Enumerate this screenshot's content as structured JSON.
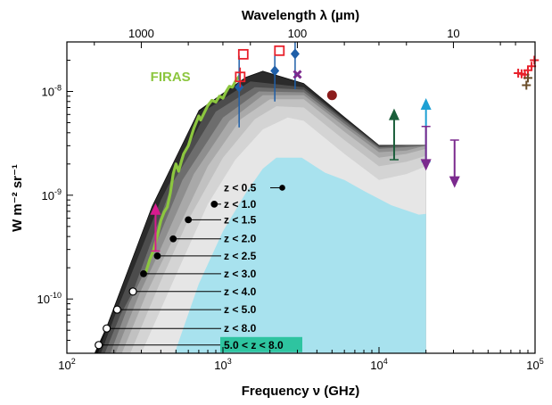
{
  "chart_data": {
    "type": "area",
    "title": "",
    "xlabel": "Frequency ν (GHz)",
    "x2label": "Wavelength λ (µm)",
    "ylabel": "W m⁻² sr⁻¹",
    "x_scale": "log",
    "y_scale": "log",
    "xlim": [
      100,
      100000
    ],
    "ylim": [
      3e-11,
      3e-08
    ],
    "x_ticks": [
      {
        "value": 100,
        "base": "10",
        "exp": "2"
      },
      {
        "value": 1000,
        "base": "10",
        "exp": "3"
      },
      {
        "value": 10000,
        "base": "10",
        "exp": "4"
      },
      {
        "value": 100000,
        "base": "10",
        "exp": "5"
      }
    ],
    "x2_ticks": [
      {
        "value_um": 1000,
        "label": "1000"
      },
      {
        "value_um": 100,
        "label": "100"
      },
      {
        "value_um": 10,
        "label": "10"
      }
    ],
    "y_ticks": [
      {
        "value": 1e-10,
        "base": "10",
        "exp": "-10"
      },
      {
        "value": 1e-09,
        "base": "10",
        "exp": "-9"
      },
      {
        "value": 1e-08,
        "base": "10",
        "exp": "-8"
      }
    ],
    "cumulative_series": [
      {
        "name": "z < 0.5",
        "color": "#a8e2ee",
        "label_anchor": [
          2400,
          1.18e-09
        ],
        "points": [
          [
            490,
            3e-11
          ],
          [
            700,
            1.4e-10
          ],
          [
            1000,
            4.5e-10
          ],
          [
            1400,
            1.05e-09
          ],
          [
            1800,
            1.8e-09
          ],
          [
            2200,
            2.3e-09
          ],
          [
            3200,
            2.3e-09
          ],
          [
            4500,
            1.65e-09
          ],
          [
            6000,
            1.4e-09
          ],
          [
            8000,
            1.1e-09
          ],
          [
            12000,
            8e-10
          ],
          [
            18000,
            6.5e-10
          ],
          [
            20000,
            6.6e-10
          ],
          [
            20000,
            3e-11
          ]
        ]
      },
      {
        "name": "z < 1.0",
        "color": "#e6e6e6",
        "label_anchor": [
          880,
          8.2e-10
        ],
        "points": [
          [
            300,
            3e-11
          ],
          [
            500,
            1.7e-10
          ],
          [
            800,
            8.2e-10
          ],
          [
            1200,
            2.2e-09
          ],
          [
            1800,
            4.3e-09
          ],
          [
            2600,
            5.6e-09
          ],
          [
            3300,
            5.2e-09
          ],
          [
            6000,
            2.5e-09
          ],
          [
            10000,
            1.4e-09
          ],
          [
            15000,
            1.6e-09
          ],
          [
            20000,
            1.9e-09
          ]
        ]
      },
      {
        "name": "z < 1.5",
        "color": "#d4d4d4",
        "label_anchor": [
          600,
          5.8e-10
        ],
        "points": [
          [
            255,
            3e-11
          ],
          [
            400,
            1.5e-10
          ],
          [
            600,
            5.8e-10
          ],
          [
            1000,
            2.3e-09
          ],
          [
            1600,
            5.4e-09
          ],
          [
            2200,
            7.2e-09
          ],
          [
            3300,
            7e-09
          ],
          [
            6000,
            3.4e-09
          ],
          [
            10000,
            1.9e-09
          ],
          [
            15000,
            2.1e-09
          ],
          [
            20000,
            2.4e-09
          ]
        ]
      },
      {
        "name": "z < 2.0",
        "color": "#c1c1c1",
        "label_anchor": [
          480,
          3.8e-10
        ],
        "points": [
          [
            225,
            3e-11
          ],
          [
            330,
            1.2e-10
          ],
          [
            480,
            3.8e-10
          ],
          [
            800,
            1.9e-09
          ],
          [
            1300,
            5.4e-09
          ],
          [
            2000,
            8.4e-09
          ],
          [
            3300,
            8.4e-09
          ],
          [
            6000,
            4.1e-09
          ],
          [
            10000,
            2.3e-09
          ],
          [
            15000,
            2.5e-09
          ],
          [
            20000,
            2.8e-09
          ]
        ]
      },
      {
        "name": "z < 2.5",
        "color": "#a9a9a9",
        "label_anchor": [
          380,
          2.6e-10
        ],
        "points": [
          [
            205,
            3e-11
          ],
          [
            290,
            1.1e-10
          ],
          [
            380,
            2.6e-10
          ],
          [
            650,
            1.6e-09
          ],
          [
            1100,
            5.2e-09
          ],
          [
            1800,
            9.2e-09
          ],
          [
            3300,
            9.2e-09
          ],
          [
            6000,
            4.6e-09
          ],
          [
            10000,
            2.6e-09
          ],
          [
            15000,
            2.7e-09
          ],
          [
            20000,
            3e-09
          ]
        ]
      },
      {
        "name": "z < 3.0",
        "color": "#8e8e8e",
        "label_anchor": [
          310,
          1.75e-10
        ],
        "points": [
          [
            190,
            3e-11
          ],
          [
            250,
            9e-11
          ],
          [
            310,
            1.75e-10
          ],
          [
            550,
            1.4e-09
          ],
          [
            1000,
            5.6e-09
          ],
          [
            1700,
            1e-08
          ],
          [
            3300,
            9.8e-09
          ],
          [
            6000,
            4.9e-09
          ],
          [
            10000,
            2.8e-09
          ],
          [
            15000,
            2.9e-09
          ],
          [
            20000,
            3e-09
          ]
        ]
      },
      {
        "name": "z < 4.0",
        "color": "#6d6d6d",
        "label_anchor": [
          265,
          1.18e-10
        ],
        "points": [
          [
            175,
            3e-11
          ],
          [
            220,
            7e-11
          ],
          [
            265,
            1.18e-10
          ],
          [
            480,
            1.35e-09
          ],
          [
            900,
            6.4e-09
          ],
          [
            1600,
            1.1e-08
          ],
          [
            3300,
            1.04e-08
          ],
          [
            6000,
            5.2e-09
          ],
          [
            10000,
            2.9e-09
          ],
          [
            15000,
            3e-09
          ],
          [
            20000,
            3e-09
          ]
        ]
      },
      {
        "name": "z < 5.0",
        "color": "#4c4c4c",
        "label_anchor": [
          210,
          7.9e-11
        ],
        "points": [
          [
            165,
            3e-11
          ],
          [
            210,
            7.9e-11
          ],
          [
            400,
            9e-10
          ],
          [
            800,
            6.8e-09
          ],
          [
            1500,
            1.25e-08
          ],
          [
            3300,
            1.1e-08
          ],
          [
            6000,
            5.4e-09
          ],
          [
            10000,
            3e-09
          ],
          [
            15000,
            3e-09
          ],
          [
            20000,
            3e-09
          ]
        ]
      },
      {
        "name": "z < 8.0",
        "color": "#2b2b2b",
        "label_anchor": [
          180,
          5.2e-11
        ],
        "points": [
          [
            158,
            3e-11
          ],
          [
            180,
            5.2e-11
          ],
          [
            350,
            7.5e-10
          ],
          [
            700,
            6.4e-09
          ],
          [
            1400,
            1.35e-08
          ],
          [
            1800,
            1.55e-08
          ],
          [
            3300,
            1.18e-08
          ],
          [
            6000,
            5.6e-09
          ],
          [
            10000,
            3e-09
          ],
          [
            15000,
            3e-09
          ],
          [
            20000,
            3e-09
          ]
        ]
      }
    ],
    "highlight_label": {
      "name": "5.0 < z < 8.0",
      "color": "#2ec4a0",
      "label_anchor": [
        160,
        3.6e-11
      ]
    },
    "z8_envelope": [
      [
        150,
        3e-11
      ],
      [
        180,
        5.5e-11
      ],
      [
        350,
        7.8e-10
      ],
      [
        700,
        6.6e-09
      ],
      [
        1400,
        1.38e-08
      ],
      [
        1800,
        1.58e-08
      ],
      [
        3300,
        1.2e-08
      ],
      [
        6000,
        5.7e-09
      ],
      [
        10000,
        3.05e-09
      ],
      [
        15000,
        3.05e-09
      ],
      [
        20000,
        3.05e-09
      ]
    ],
    "firas": {
      "name": "FIRAS",
      "color": "#8cc63f",
      "label_anchor": [
        620,
        1.25e-08
      ],
      "points": [
        [
          320,
          1.8e-10
        ],
        [
          340,
          2.4e-10
        ],
        [
          360,
          3e-10
        ],
        [
          380,
          4.1e-10
        ],
        [
          400,
          5.7e-10
        ],
        [
          420,
          6.9e-10
        ],
        [
          440,
          7.7e-10
        ],
        [
          460,
          1.05e-09
        ],
        [
          480,
          1.6e-09
        ],
        [
          500,
          2e-09
        ],
        [
          520,
          1.7e-09
        ],
        [
          540,
          2.1e-09
        ],
        [
          560,
          2.5e-09
        ],
        [
          600,
          3e-09
        ],
        [
          620,
          3.5e-09
        ],
        [
          650,
          4.4e-09
        ],
        [
          700,
          5.8e-09
        ],
        [
          720,
          5.3e-09
        ],
        [
          750,
          6e-09
        ],
        [
          800,
          7.3e-09
        ],
        [
          850,
          8.2e-09
        ],
        [
          900,
          7.9e-09
        ],
        [
          950,
          9e-09
        ],
        [
          1000,
          8.6e-09
        ],
        [
          1050,
          1e-08
        ],
        [
          1100,
          1.12e-08
        ],
        [
          1150,
          1.1e-08
        ],
        [
          1200,
          1.25e-08
        ],
        [
          1280,
          1.42e-08
        ]
      ]
    },
    "datasets": [
      {
        "name": "blue-diamond",
        "color": "#1f5fa8",
        "marker": "diamond",
        "points": [
          {
            "x": 1270,
            "y": 1.1e-08,
            "err": [
              4.5e-09,
              2.2e-08
            ]
          },
          {
            "x": 2150,
            "y": 1.58e-08,
            "err": [
              8e-09,
              2.3e-08
            ]
          },
          {
            "x": 2900,
            "y": 2.3e-08,
            "err": [
              1.05e-08,
              3e-08
            ]
          }
        ]
      },
      {
        "name": "red-square",
        "color": "#e8212b",
        "marker": "square",
        "points": [
          {
            "x": 1290,
            "y": 1.38e-08,
            "err": [
              1.1e-08,
              1.7e-08
            ]
          },
          {
            "x": 1350,
            "y": 2.28e-08,
            "err": null
          },
          {
            "x": 2300,
            "y": 2.47e-08,
            "err": null
          }
        ]
      },
      {
        "name": "purple-cross",
        "color": "#7b2a8e",
        "marker": "cross",
        "points": [
          {
            "x": 3000,
            "y": 1.46e-08,
            "err": null
          }
        ]
      },
      {
        "name": "darkred-circle",
        "color": "#8c1c1c",
        "marker": "circle",
        "points": [
          {
            "x": 5000,
            "y": 9.2e-09,
            "err": null
          }
        ]
      },
      {
        "name": "magenta-limit",
        "color": "#d81b8f",
        "marker": "uparrow",
        "points": [
          {
            "x": 370,
            "y": 2.9e-10,
            "top": 7.6e-10
          }
        ]
      },
      {
        "name": "green-limit",
        "color": "#1a5e3a",
        "marker": "uparrow",
        "points": [
          {
            "x": 12500,
            "y": 2.2e-09,
            "top": 6.2e-09
          }
        ]
      },
      {
        "name": "cyan-limit",
        "color": "#1ea0d4",
        "marker": "uparrow",
        "points": [
          {
            "x": 20000,
            "y": 2.1e-09,
            "top": 7.8e-09
          }
        ]
      },
      {
        "name": "purple-upperlimit",
        "color": "#7b2a8e",
        "marker": "downarrow",
        "points": [
          {
            "x": 20000,
            "y": 4.6e-09,
            "bottom": 1.9e-09
          },
          {
            "x": 30500,
            "y": 3.4e-09,
            "bottom": 1.3e-09
          }
        ]
      },
      {
        "name": "red-plus",
        "color": "#e8212b",
        "marker": "plus",
        "points": [
          {
            "x": 78000,
            "y": 1.5e-08
          },
          {
            "x": 82000,
            "y": 1.48e-08
          },
          {
            "x": 86000,
            "y": 1.45e-08
          },
          {
            "x": 90000,
            "y": 1.6e-08
          },
          {
            "x": 95000,
            "y": 1.75e-08
          },
          {
            "x": 99000,
            "y": 2e-08
          }
        ]
      },
      {
        "name": "brown-plus",
        "color": "#6b4e2a",
        "marker": "plus",
        "points": [
          {
            "x": 88000,
            "y": 1.15e-08
          },
          {
            "x": 90000,
            "y": 1.35e-08
          }
        ]
      }
    ]
  }
}
